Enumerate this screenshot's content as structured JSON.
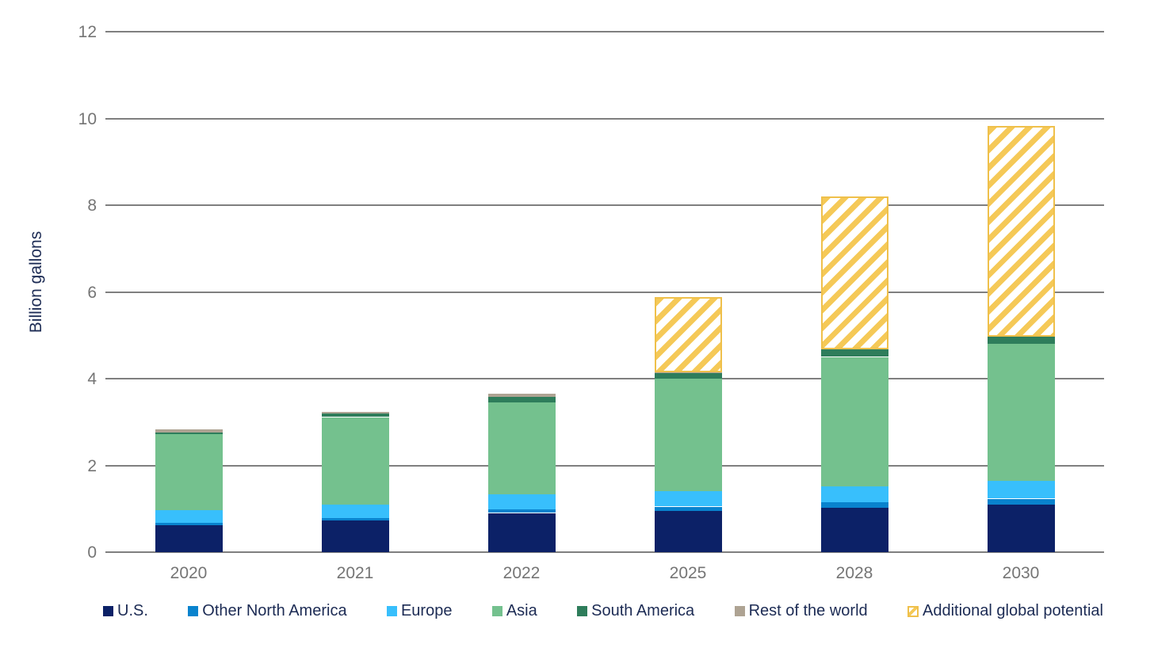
{
  "chart_data": {
    "type": "bar",
    "stacked": true,
    "title": "",
    "xlabel": "",
    "ylabel": "Billion gallons",
    "ylim": [
      0,
      12
    ],
    "yticks": [
      0,
      2,
      4,
      6,
      8,
      10,
      12
    ],
    "grid": true,
    "gridline_color": "#7f7f7f",
    "tick_label_color": "#757575",
    "axis_title_color": "#1c2b54",
    "legend_position": "bottom",
    "categories": [
      "2020",
      "2021",
      "2022",
      "2025",
      "2028",
      "2030"
    ],
    "series": [
      {
        "name": "U.S.",
        "color": "#0c2167",
        "hatch": false,
        "values": [
          0.62,
          0.73,
          0.9,
          0.95,
          1.03,
          1.11
        ]
      },
      {
        "name": "Other North America",
        "color": "#0983ce",
        "hatch": false,
        "values": [
          0.05,
          0.05,
          0.08,
          0.1,
          0.12,
          0.12
        ]
      },
      {
        "name": "Europe",
        "color": "#38bffc",
        "hatch": false,
        "values": [
          0.3,
          0.33,
          0.35,
          0.35,
          0.38,
          0.41
        ]
      },
      {
        "name": "Asia",
        "color": "#74c18e",
        "hatch": false,
        "values": [
          1.75,
          2.0,
          2.12,
          2.6,
          2.97,
          3.16
        ]
      },
      {
        "name": "South America",
        "color": "#2e7d5b",
        "hatch": false,
        "values": [
          0.05,
          0.08,
          0.13,
          0.13,
          0.17,
          0.16
        ]
      },
      {
        "name": "Rest of the world",
        "color": "#aea393",
        "hatch": false,
        "values": [
          0.07,
          0.04,
          0.07,
          0.02,
          0.02,
          0.02
        ]
      },
      {
        "name": "Additional global potential",
        "color": "#f5c957",
        "hatch": true,
        "values": [
          0.0,
          0.0,
          0.0,
          1.73,
          3.52,
          4.85
        ]
      }
    ],
    "totals": [
      2.84,
      3.23,
      3.65,
      5.88,
      8.21,
      9.83
    ]
  },
  "layout_text": {
    "ylabel": "Billion gallons"
  }
}
